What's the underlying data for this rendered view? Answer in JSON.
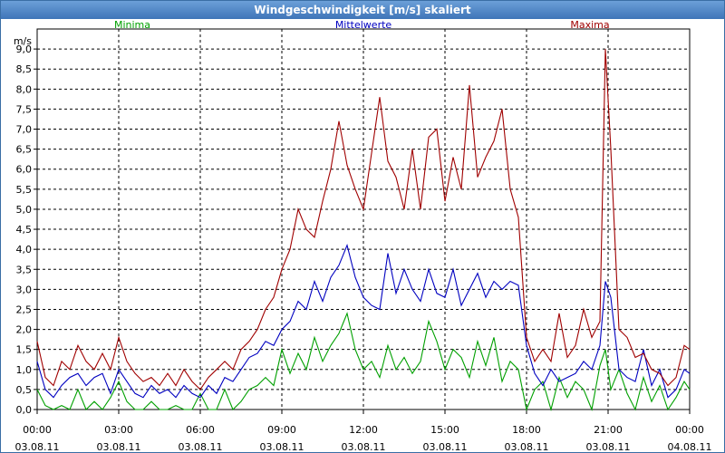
{
  "chart_data": {
    "type": "line",
    "title": "Windgeschwindigkeit [m/s] skaliert",
    "ylabel": "m/s",
    "ylim": [
      0,
      9.5
    ],
    "yticks": [
      "0,0",
      "0,5",
      "1,0",
      "1,5",
      "2,0",
      "2,5",
      "3,0",
      "3,5",
      "4,0",
      "4,5",
      "5,0",
      "5,5",
      "6,0",
      "6,5",
      "7,0",
      "7,5",
      "8,0",
      "8,5",
      "9,0"
    ],
    "xlim": [
      0,
      24
    ],
    "xticks": [
      {
        "time": "00:00",
        "date": "03.08.11"
      },
      {
        "time": "03:00",
        "date": "03.08.11"
      },
      {
        "time": "06:00",
        "date": "03.08.11"
      },
      {
        "time": "09:00",
        "date": "03.08.11"
      },
      {
        "time": "12:00",
        "date": "03.08.11"
      },
      {
        "time": "15:00",
        "date": "03.08.11"
      },
      {
        "time": "18:00",
        "date": "03.08.11"
      },
      {
        "time": "21:00",
        "date": "03.08.11"
      },
      {
        "time": "00:00",
        "date": "04.08.11"
      }
    ],
    "series": [
      {
        "name": "Minima",
        "color": "#00a000",
        "x": [
          0,
          0.3,
          0.6,
          0.9,
          1.2,
          1.5,
          1.8,
          2.1,
          2.4,
          2.7,
          3.0,
          3.3,
          3.6,
          3.9,
          4.2,
          4.5,
          4.8,
          5.1,
          5.4,
          5.7,
          6.0,
          6.3,
          6.6,
          6.9,
          7.2,
          7.5,
          7.8,
          8.1,
          8.4,
          8.7,
          9.0,
          9.3,
          9.6,
          9.9,
          10.2,
          10.5,
          10.8,
          11.1,
          11.4,
          11.7,
          12.0,
          12.3,
          12.6,
          12.9,
          13.2,
          13.5,
          13.8,
          14.1,
          14.4,
          14.7,
          15.0,
          15.3,
          15.6,
          15.9,
          16.2,
          16.5,
          16.8,
          17.1,
          17.4,
          17.7,
          18.0,
          18.3,
          18.6,
          18.9,
          19.2,
          19.5,
          19.8,
          20.1,
          20.4,
          20.7,
          20.9,
          21.1,
          21.4,
          21.7,
          22.0,
          22.3,
          22.6,
          22.9,
          23.2,
          23.5,
          23.8,
          24.0
        ],
        "values": [
          0.5,
          0.1,
          0.0,
          0.1,
          0.0,
          0.5,
          0.0,
          0.2,
          0.0,
          0.3,
          0.7,
          0.2,
          0.0,
          0.0,
          0.2,
          0.0,
          0.0,
          0.1,
          0.0,
          0.0,
          0.4,
          0.0,
          0.0,
          0.5,
          0.0,
          0.2,
          0.5,
          0.6,
          0.8,
          0.6,
          1.5,
          0.9,
          1.4,
          1.0,
          1.8,
          1.2,
          1.6,
          1.9,
          2.4,
          1.5,
          1.0,
          1.2,
          0.8,
          1.6,
          1.0,
          1.3,
          0.9,
          1.2,
          2.2,
          1.7,
          1.0,
          1.5,
          1.3,
          0.8,
          1.7,
          1.1,
          1.8,
          0.7,
          1.2,
          1.0,
          0.0,
          0.5,
          0.7,
          0.0,
          0.8,
          0.3,
          0.7,
          0.5,
          0.0,
          1.1,
          1.5,
          0.5,
          1.0,
          0.4,
          0.0,
          0.8,
          0.2,
          0.6,
          0.0,
          0.3,
          0.7,
          0.5
        ]
      },
      {
        "name": "Mittelwerte",
        "color": "#0000c0",
        "x": [
          0,
          0.3,
          0.6,
          0.9,
          1.2,
          1.5,
          1.8,
          2.1,
          2.4,
          2.7,
          3.0,
          3.3,
          3.6,
          3.9,
          4.2,
          4.5,
          4.8,
          5.1,
          5.4,
          5.7,
          6.0,
          6.3,
          6.6,
          6.9,
          7.2,
          7.5,
          7.8,
          8.1,
          8.4,
          8.7,
          9.0,
          9.3,
          9.6,
          9.9,
          10.2,
          10.5,
          10.8,
          11.1,
          11.4,
          11.7,
          12.0,
          12.3,
          12.6,
          12.9,
          13.2,
          13.5,
          13.8,
          14.1,
          14.4,
          14.7,
          15.0,
          15.3,
          15.6,
          15.9,
          16.2,
          16.5,
          16.8,
          17.1,
          17.4,
          17.7,
          18.0,
          18.3,
          18.6,
          18.9,
          19.2,
          19.5,
          19.8,
          20.1,
          20.4,
          20.7,
          20.9,
          21.1,
          21.4,
          21.7,
          22.0,
          22.3,
          22.6,
          22.9,
          23.2,
          23.5,
          23.8,
          24.0
        ],
        "values": [
          1.2,
          0.5,
          0.3,
          0.6,
          0.8,
          0.9,
          0.6,
          0.8,
          0.9,
          0.4,
          1.0,
          0.7,
          0.4,
          0.3,
          0.6,
          0.4,
          0.5,
          0.3,
          0.6,
          0.4,
          0.3,
          0.6,
          0.4,
          0.8,
          0.7,
          1.0,
          1.3,
          1.4,
          1.7,
          1.6,
          2.0,
          2.2,
          2.7,
          2.5,
          3.2,
          2.7,
          3.3,
          3.6,
          4.1,
          3.3,
          2.8,
          2.6,
          2.5,
          3.9,
          2.9,
          3.5,
          3.0,
          2.7,
          3.5,
          2.9,
          2.8,
          3.5,
          2.6,
          3.0,
          3.4,
          2.8,
          3.2,
          3.0,
          3.2,
          3.1,
          1.6,
          0.9,
          0.6,
          1.0,
          0.7,
          0.8,
          0.9,
          1.2,
          1.0,
          1.6,
          3.2,
          2.8,
          1.0,
          0.8,
          0.7,
          1.5,
          0.6,
          1.0,
          0.3,
          0.5,
          1.0,
          0.9
        ]
      },
      {
        "name": "Maxima",
        "color": "#a00000",
        "x": [
          0,
          0.3,
          0.6,
          0.9,
          1.2,
          1.5,
          1.8,
          2.1,
          2.4,
          2.7,
          3.0,
          3.3,
          3.6,
          3.9,
          4.2,
          4.5,
          4.8,
          5.1,
          5.4,
          5.7,
          6.0,
          6.3,
          6.6,
          6.9,
          7.2,
          7.5,
          7.8,
          8.1,
          8.4,
          8.7,
          9.0,
          9.3,
          9.6,
          9.9,
          10.2,
          10.5,
          10.8,
          11.1,
          11.4,
          11.7,
          12.0,
          12.3,
          12.6,
          12.9,
          13.2,
          13.5,
          13.8,
          14.1,
          14.4,
          14.7,
          15.0,
          15.3,
          15.6,
          15.9,
          16.2,
          16.5,
          16.8,
          17.1,
          17.4,
          17.7,
          18.0,
          18.3,
          18.6,
          18.9,
          19.2,
          19.5,
          19.8,
          20.1,
          20.4,
          20.7,
          20.9,
          21.1,
          21.4,
          21.7,
          22.0,
          22.3,
          22.6,
          22.9,
          23.2,
          23.5,
          23.8,
          24.0
        ],
        "values": [
          1.7,
          0.8,
          0.6,
          1.2,
          1.0,
          1.6,
          1.2,
          1.0,
          1.4,
          1.0,
          1.8,
          1.2,
          0.9,
          0.7,
          0.8,
          0.6,
          0.9,
          0.6,
          1.0,
          0.7,
          0.5,
          0.8,
          1.0,
          1.2,
          1.0,
          1.5,
          1.7,
          2.0,
          2.5,
          2.8,
          3.5,
          4.0,
          5.0,
          4.5,
          4.3,
          5.2,
          6.0,
          7.2,
          6.1,
          5.5,
          5.0,
          6.4,
          7.8,
          6.2,
          5.8,
          5.0,
          6.5,
          5.0,
          6.8,
          7.0,
          5.2,
          6.3,
          5.5,
          8.1,
          5.8,
          6.3,
          6.7,
          7.5,
          5.5,
          4.8,
          1.8,
          1.2,
          1.5,
          1.2,
          2.4,
          1.3,
          1.6,
          2.5,
          1.8,
          2.2,
          9.0,
          6.5,
          2.0,
          1.8,
          1.3,
          1.4,
          1.0,
          0.9,
          0.6,
          0.8,
          1.6,
          1.5
        ]
      }
    ]
  }
}
